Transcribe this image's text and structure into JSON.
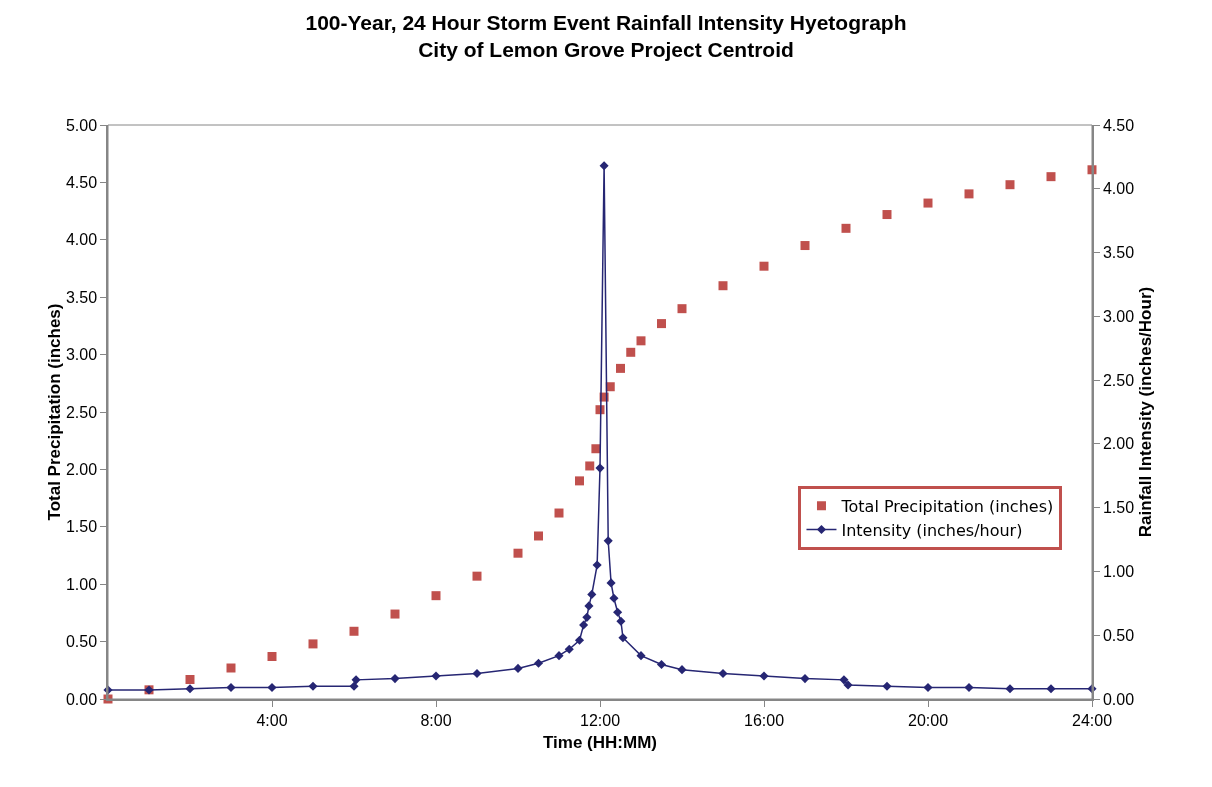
{
  "chart_data": {
    "type": "line",
    "title": "100-Year, 24 Hour Storm Event Rainfall Intensity Hyetograph\nCity of Lemon Grove Project Centroid",
    "xlabel": "Time (HH:MM)",
    "ylabel": "Total Precipitation (inches)",
    "y2label": "Rainfall Intensity (inches/Hour)",
    "xlim": [
      0,
      24
    ],
    "xticks": [
      {
        "value": 4,
        "label": "4:00"
      },
      {
        "value": 8,
        "label": "8:00"
      },
      {
        "value": 12,
        "label": "12:00"
      },
      {
        "value": 16,
        "label": "16:00"
      },
      {
        "value": 20,
        "label": "20:00"
      },
      {
        "value": 24,
        "label": "24:00"
      }
    ],
    "ylim": [
      0,
      5
    ],
    "yticks": [
      {
        "value": 0,
        "label": "0.00"
      },
      {
        "value": 0.5,
        "label": "0.50"
      },
      {
        "value": 1,
        "label": "1.00"
      },
      {
        "value": 1.5,
        "label": "1.50"
      },
      {
        "value": 2,
        "label": "2.00"
      },
      {
        "value": 2.5,
        "label": "2.50"
      },
      {
        "value": 3,
        "label": "3.00"
      },
      {
        "value": 3.5,
        "label": "3.50"
      },
      {
        "value": 4,
        "label": "4.00"
      },
      {
        "value": 4.5,
        "label": "4.50"
      },
      {
        "value": 5,
        "label": "5.00"
      }
    ],
    "y2lim": [
      0,
      4.5
    ],
    "y2ticks": [
      {
        "value": 0,
        "label": "0.00"
      },
      {
        "value": 0.5,
        "label": "0.50"
      },
      {
        "value": 1,
        "label": "1.00"
      },
      {
        "value": 1.5,
        "label": "1.50"
      },
      {
        "value": 2,
        "label": "2.00"
      },
      {
        "value": 2.5,
        "label": "2.50"
      },
      {
        "value": 3,
        "label": "3.00"
      },
      {
        "value": 3.5,
        "label": "3.50"
      },
      {
        "value": 4,
        "label": "4.00"
      },
      {
        "value": 4.5,
        "label": "4.50"
      }
    ],
    "grid": false,
    "legend": "bottom right",
    "series": [
      {
        "name": "Total Precipitation (inches)",
        "type": "scatter",
        "marker": "square",
        "color": "#c0504d",
        "x": [
          0,
          1,
          2,
          3,
          4,
          5,
          6,
          7,
          8,
          9,
          10,
          10.5,
          11,
          11.5,
          11.75,
          11.9,
          12,
          12.1,
          12.25,
          12.5,
          12.75,
          13,
          13.5,
          14,
          15,
          16,
          17,
          18,
          19,
          20,
          21,
          22,
          23,
          24
        ],
        "values": [
          0.0,
          0.08,
          0.17,
          0.27,
          0.37,
          0.48,
          0.59,
          0.74,
          0.9,
          1.07,
          1.27,
          1.42,
          1.62,
          1.9,
          2.03,
          2.18,
          2.52,
          2.63,
          2.72,
          2.88,
          3.02,
          3.12,
          3.27,
          3.4,
          3.6,
          3.77,
          3.95,
          4.1,
          4.22,
          4.32,
          4.4,
          4.48,
          4.55,
          4.61
        ]
      },
      {
        "name": "Intensity (inches/hour)",
        "marker": "diamond",
        "axis": "y2",
        "color": "#262673",
        "x": [
          0,
          1,
          2,
          3,
          4,
          5,
          6,
          6.05,
          7,
          8,
          9,
          10,
          10.5,
          11,
          11.25,
          11.5,
          11.6,
          11.68,
          11.73,
          11.8,
          11.93,
          12,
          12.1,
          12.2,
          12.27,
          12.34,
          12.43,
          12.51,
          12.56,
          13,
          13.5,
          14,
          15,
          16,
          17,
          17.95,
          18.05,
          19,
          20,
          21,
          22,
          23,
          24
        ],
        "values": [
          0.07,
          0.07,
          0.08,
          0.09,
          0.09,
          0.1,
          0.1,
          0.15,
          0.16,
          0.18,
          0.2,
          0.24,
          0.28,
          0.34,
          0.39,
          0.46,
          0.58,
          0.64,
          0.73,
          0.82,
          1.05,
          1.81,
          4.18,
          1.24,
          0.91,
          0.79,
          0.68,
          0.61,
          0.48,
          0.34,
          0.27,
          0.23,
          0.2,
          0.18,
          0.16,
          0.15,
          0.11,
          0.1,
          0.09,
          0.09,
          0.08,
          0.08,
          0.08
        ]
      }
    ]
  }
}
